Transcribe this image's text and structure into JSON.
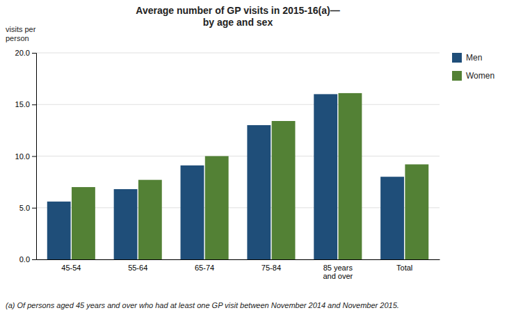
{
  "chart_data": {
    "type": "bar",
    "title": "Average number of GP visits in 2015-16(a)—\nby age and sex",
    "ylabel": "visits per\nperson",
    "categories": [
      "45-54",
      "55-64",
      "65-74",
      "75-84",
      "85 years\nand over",
      "Total"
    ],
    "series": [
      {
        "name": "Men",
        "color": "#1F4E79",
        "values": [
          5.6,
          6.8,
          9.1,
          13.0,
          16.0,
          8.0
        ]
      },
      {
        "name": "Women",
        "color": "#538135",
        "values": [
          7.0,
          7.7,
          10.0,
          13.4,
          16.1,
          9.2
        ]
      }
    ],
    "ylim": [
      0,
      20
    ],
    "yticks": [
      {
        "value": 0,
        "label": "0.0"
      },
      {
        "value": 5,
        "label": "5.0"
      },
      {
        "value": 10,
        "label": "10.0"
      },
      {
        "value": 15,
        "label": "15.0"
      },
      {
        "value": 20,
        "label": "20.0"
      }
    ],
    "grid": true,
    "legend": "right",
    "annotations": [
      "(a) Of persons aged 45 years and over who had at least one GP visit between November 2014 and November 2015."
    ]
  }
}
